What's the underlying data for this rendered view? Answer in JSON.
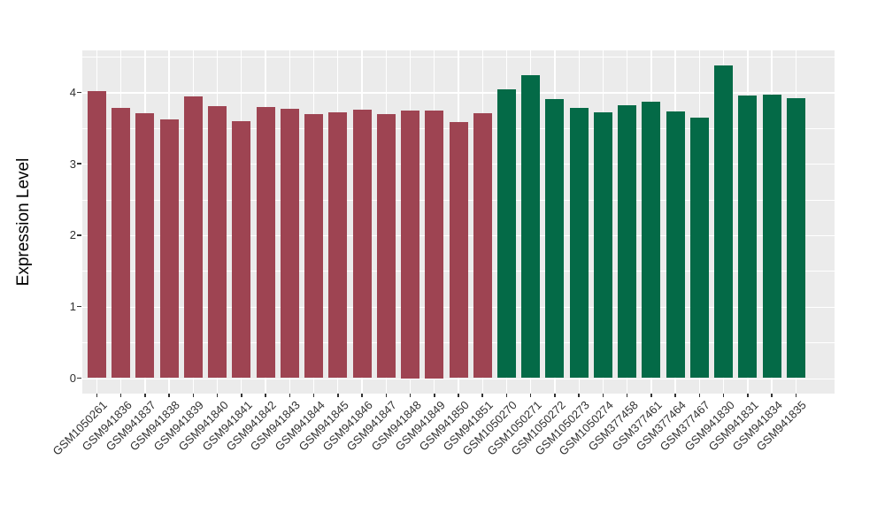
{
  "chart_data": {
    "type": "bar",
    "title": "",
    "xlabel": "",
    "ylabel": "Expression Level",
    "ylim": [
      0,
      4.58
    ],
    "yticks": [
      0,
      1,
      2,
      3,
      4
    ],
    "yminorticks": [
      0.5,
      1.5,
      2.5,
      3.5,
      4.5
    ],
    "grid": "on",
    "legend": "none",
    "panel_background": "#EBEBEB",
    "gridline_color": "#ffffff",
    "tick_color": "#333333",
    "group_colors": {
      "group1": "#9E4452",
      "group2": "#046A47"
    },
    "categories": [
      "GSM1050261",
      "GSM941836",
      "GSM941837",
      "GSM941838",
      "GSM941839",
      "GSM941840",
      "GSM941841",
      "GSM941842",
      "GSM941843",
      "GSM941844",
      "GSM941845",
      "GSM941846",
      "GSM941847",
      "GSM941848",
      "GSM941849",
      "GSM941850",
      "GSM941851",
      "GSM1050270",
      "GSM1050271",
      "GSM1050272",
      "GSM1050273",
      "GSM1050274",
      "GSM377458",
      "GSM377461",
      "GSM377464",
      "GSM377467",
      "GSM941830",
      "GSM941831",
      "GSM941834",
      "GSM941835"
    ],
    "values": [
      4.02,
      3.78,
      3.71,
      3.62,
      3.94,
      3.8,
      3.6,
      3.79,
      3.77,
      3.69,
      3.72,
      3.76,
      3.7,
      3.75,
      3.75,
      3.58,
      3.71,
      4.04,
      4.24,
      3.9,
      3.78,
      3.72,
      3.82,
      3.87,
      3.73,
      3.65,
      4.37,
      3.95,
      3.97,
      3.92
    ],
    "groups": [
      "group1",
      "group1",
      "group1",
      "group1",
      "group1",
      "group1",
      "group1",
      "group1",
      "group1",
      "group1",
      "group1",
      "group1",
      "group1",
      "group1",
      "group1",
      "group1",
      "group1",
      "group2",
      "group2",
      "group2",
      "group2",
      "group2",
      "group2",
      "group2",
      "group2",
      "group2",
      "group2",
      "group2",
      "group2",
      "group2"
    ]
  }
}
